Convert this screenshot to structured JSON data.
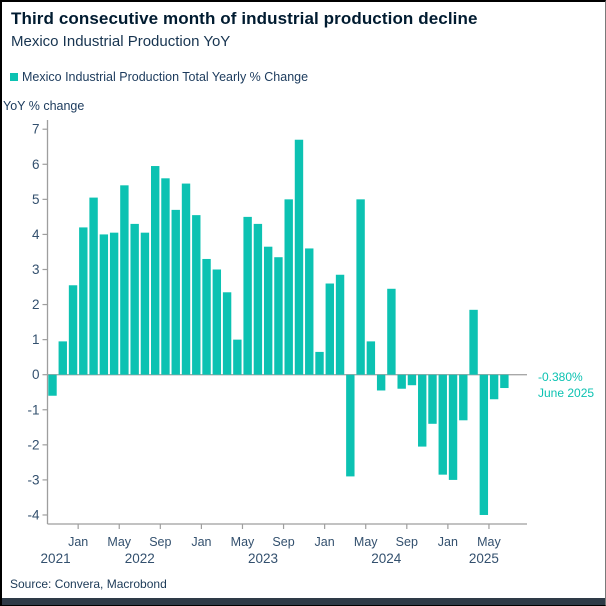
{
  "header": {
    "title": "Third consecutive month of industrial production decline",
    "subtitle": "Mexico Industrial Production YoY"
  },
  "legend": {
    "series_label": "Mexico Industrial Production Total Yearly % Change"
  },
  "annotation": {
    "value_label": "-0.380%",
    "date_label": "June 2025"
  },
  "footer": {
    "source": "Source: Convera, Macrobond"
  },
  "colors": {
    "bar": "#0cc2b2",
    "title_text": "#001b30",
    "body_text": "#1b3a5c",
    "tick_text": "#33506e",
    "axis_line": "#9e9e9e",
    "zero_line": "#a8a8a8",
    "annotation_text": "#0cc2b2",
    "bottom_strip": "#2e3a47"
  },
  "chart_data": {
    "type": "bar",
    "title": "Third consecutive month of industrial production decline",
    "subtitle": "Mexico Industrial Production YoY",
    "series_name": "Mexico Industrial Production Total Yearly % Change",
    "ylabel": "YoY % change",
    "ylim": [
      -4.4,
      7.3
    ],
    "yticks": [
      7,
      6,
      5,
      4,
      3,
      2,
      1,
      0,
      -1,
      -2,
      -3,
      -4
    ],
    "grid": false,
    "legend_position": "top-left",
    "months": [
      "2021-10",
      "2021-11",
      "2021-12",
      "2022-01",
      "2022-02",
      "2022-03",
      "2022-04",
      "2022-05",
      "2022-06",
      "2022-07",
      "2022-08",
      "2022-09",
      "2022-10",
      "2022-11",
      "2022-12",
      "2023-01",
      "2023-02",
      "2023-03",
      "2023-04",
      "2023-05",
      "2023-06",
      "2023-07",
      "2023-08",
      "2023-09",
      "2023-10",
      "2023-11",
      "2023-12",
      "2024-01",
      "2024-02",
      "2024-03",
      "2024-04",
      "2024-05",
      "2024-06",
      "2024-07",
      "2024-08",
      "2024-09",
      "2024-10",
      "2024-11",
      "2024-12",
      "2025-01",
      "2025-02",
      "2025-03",
      "2025-04",
      "2025-05",
      "2025-06"
    ],
    "values": [
      -0.6,
      0.95,
      2.55,
      4.2,
      5.05,
      4.0,
      4.05,
      5.4,
      4.3,
      4.05,
      5.95,
      5.6,
      4.7,
      5.45,
      4.55,
      3.3,
      3.0,
      2.35,
      1.0,
      4.5,
      4.3,
      3.65,
      3.35,
      5.0,
      6.7,
      3.6,
      0.65,
      2.6,
      2.85,
      -2.9,
      5.0,
      0.95,
      -0.45,
      2.45,
      -0.4,
      -0.3,
      -2.05,
      -1.4,
      -2.85,
      -3.0,
      -1.3,
      1.85,
      -4.0,
      -0.7,
      -0.38
    ],
    "x_tick_labels": [
      {
        "label": "Jan",
        "index": 3
      },
      {
        "label": "May",
        "index": 7
      },
      {
        "label": "Sep",
        "index": 11
      },
      {
        "label": "Jan",
        "index": 15
      },
      {
        "label": "May",
        "index": 19
      },
      {
        "label": "Sep",
        "index": 23
      },
      {
        "label": "Jan",
        "index": 27
      },
      {
        "label": "May",
        "index": 31
      },
      {
        "label": "Sep",
        "index": 35
      },
      {
        "label": "Jan",
        "index": 39
      },
      {
        "label": "May",
        "index": 43
      }
    ],
    "year_labels": [
      {
        "label": "2021",
        "center_index": 0.3
      },
      {
        "label": "2022",
        "center_index": 8.5
      },
      {
        "label": "2023",
        "center_index": 20.5
      },
      {
        "label": "2024",
        "center_index": 32.5
      },
      {
        "label": "2025",
        "center_index": 42.0
      }
    ],
    "last_point_label": {
      "value": "-0.380%",
      "date": "June 2025"
    }
  }
}
